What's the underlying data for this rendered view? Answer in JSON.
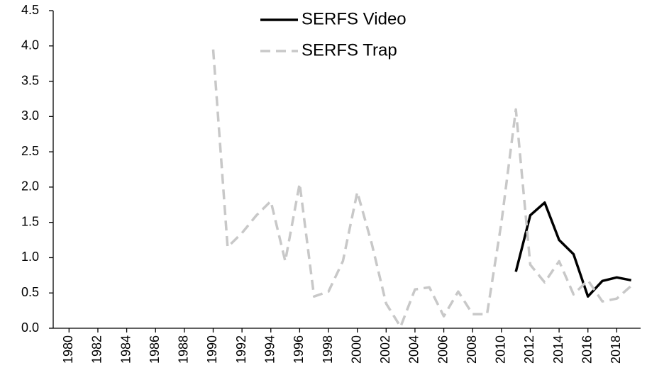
{
  "chart_data": {
    "type": "line",
    "x": [
      1980,
      1981,
      1982,
      1983,
      1984,
      1985,
      1986,
      1987,
      1988,
      1989,
      1990,
      1991,
      1992,
      1993,
      1994,
      1995,
      1996,
      1997,
      1998,
      1999,
      2000,
      2001,
      2002,
      2003,
      2004,
      2005,
      2006,
      2007,
      2008,
      2009,
      2010,
      2011,
      2012,
      2013,
      2014,
      2015,
      2016,
      2017,
      2018,
      2019
    ],
    "series": [
      {
        "name": "SERFS Video",
        "color": "#000000",
        "dash": false,
        "values": [
          null,
          null,
          null,
          null,
          null,
          null,
          null,
          null,
          null,
          null,
          null,
          null,
          null,
          null,
          null,
          null,
          null,
          null,
          null,
          null,
          null,
          null,
          null,
          null,
          null,
          null,
          null,
          null,
          null,
          null,
          null,
          0.8,
          1.6,
          1.78,
          1.25,
          1.05,
          0.45,
          0.67,
          0.72,
          0.68
        ]
      },
      {
        "name": "SERFS Trap",
        "color": "#c8c8c8",
        "dash": true,
        "values": [
          null,
          null,
          null,
          null,
          null,
          null,
          null,
          null,
          null,
          null,
          3.95,
          1.15,
          1.35,
          1.6,
          1.8,
          0.95,
          2.05,
          0.45,
          0.52,
          0.95,
          1.93,
          1.2,
          0.35,
          0.02,
          0.55,
          0.58,
          0.17,
          0.52,
          0.2,
          0.2,
          1.5,
          3.1,
          0.9,
          0.65,
          0.95,
          0.48,
          0.68,
          0.38,
          0.42,
          0.6
        ]
      }
    ],
    "xlim": [
      1979,
      2020
    ],
    "xticks": [
      1980,
      1982,
      1984,
      1986,
      1988,
      1990,
      1992,
      1994,
      1996,
      1998,
      2000,
      2002,
      2004,
      2006,
      2008,
      2010,
      2012,
      2014,
      2016,
      2018
    ],
    "ylim": [
      0,
      4.5
    ],
    "yticks": [
      {
        "value": 0,
        "label": "0.0"
      },
      {
        "value": 0.5,
        "label": "0.5"
      },
      {
        "value": 1,
        "label": "1.0"
      },
      {
        "value": 1.5,
        "label": "1.5"
      },
      {
        "value": 2,
        "label": "2.0"
      },
      {
        "value": 2.5,
        "label": "2.5"
      },
      {
        "value": 3,
        "label": "3.0"
      },
      {
        "value": 3.5,
        "label": "3.5"
      },
      {
        "value": 4,
        "label": "4.0"
      },
      {
        "value": 4.5,
        "label": "4.5"
      }
    ],
    "grid": false,
    "legend": "top"
  }
}
